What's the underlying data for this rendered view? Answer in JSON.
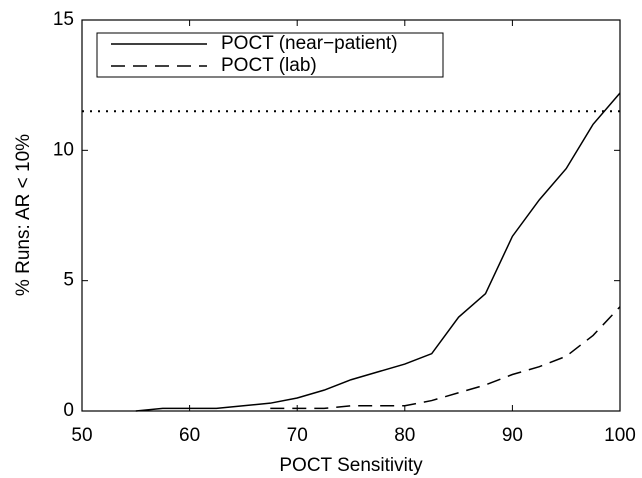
{
  "chart_data": {
    "type": "line",
    "x_label": "POCT Sensitivity",
    "y_label": "% Runs: AR < 10%",
    "x": [
      55,
      57.5,
      60,
      62.5,
      65,
      67.5,
      70,
      72.5,
      75,
      77.5,
      80,
      82.5,
      85,
      87.5,
      90,
      92.5,
      95,
      97.5,
      100
    ],
    "series": [
      {
        "name": "POCT (near−patient)",
        "color": "#000000",
        "dash": "solid",
        "values": [
          0,
          0.1,
          0.1,
          0.1,
          0.2,
          0.3,
          0.5,
          0.8,
          1.2,
          1.5,
          1.8,
          2.2,
          3.6,
          4.5,
          6.7,
          8.1,
          9.3,
          11.0,
          12.2
        ]
      },
      {
        "name": "POCT (lab)",
        "color": "#000000",
        "dash": "dashed",
        "values": [
          null,
          null,
          null,
          null,
          null,
          0.1,
          0.1,
          0.1,
          0.2,
          0.2,
          0.2,
          0.4,
          0.7,
          1.0,
          1.4,
          1.7,
          2.1,
          2.9,
          4.0
        ]
      }
    ],
    "reference_line": {
      "y": 11.5,
      "color": "#000000",
      "dash": "dotted"
    },
    "xlim": [
      50,
      100
    ],
    "xticks": [
      50,
      60,
      70,
      80,
      90,
      100
    ],
    "ylim": [
      0,
      15
    ],
    "yticks": [
      0,
      5,
      10,
      15
    ],
    "grid": false,
    "legend": "upper left"
  }
}
